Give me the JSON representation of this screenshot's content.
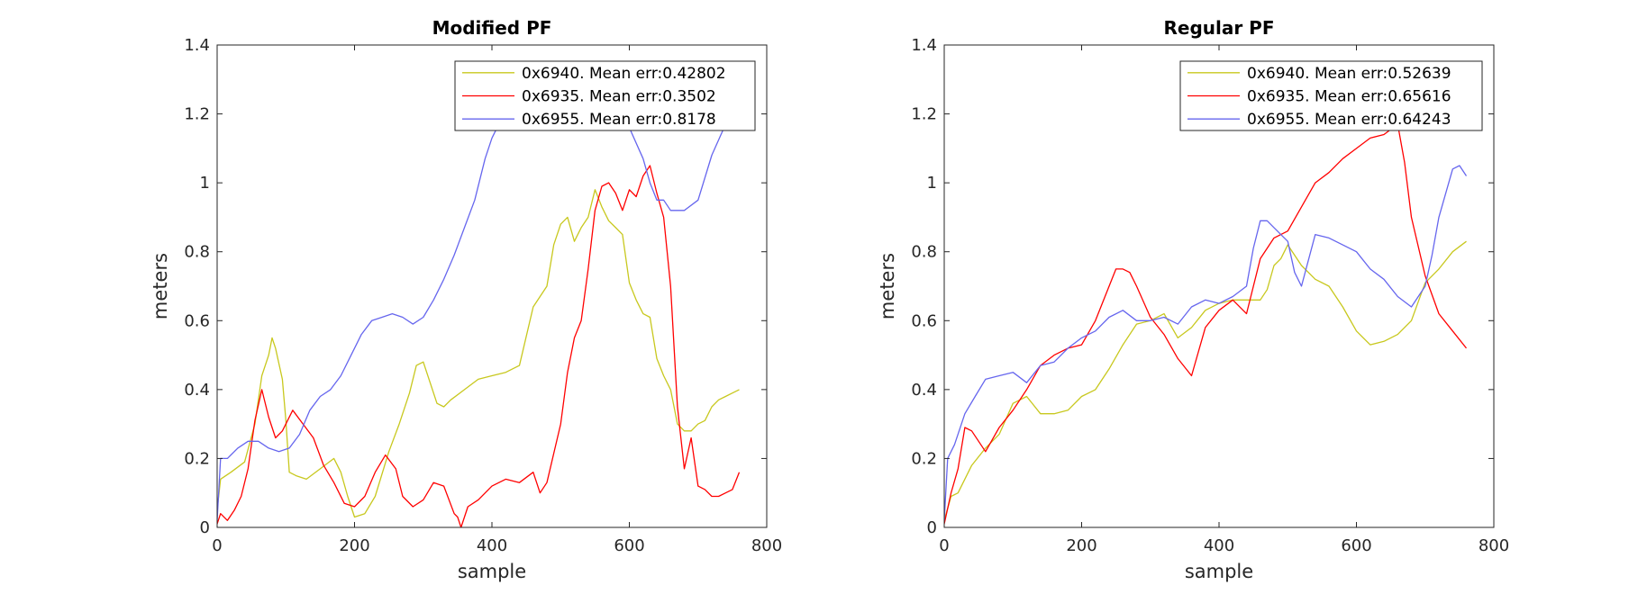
{
  "chart_data": [
    {
      "type": "line",
      "title": "Modified PF",
      "xlabel": "sample",
      "ylabel": "meters",
      "xlim": [
        0,
        800
      ],
      "ylim": [
        0,
        1.4
      ],
      "xticks": [
        0,
        200,
        400,
        600,
        800
      ],
      "yticks": [
        0,
        0.2,
        0.4,
        0.6,
        0.8,
        1,
        1.2,
        1.4
      ],
      "xtick_labels": [
        "0",
        "200",
        "400",
        "600",
        "800"
      ],
      "ytick_labels": [
        "0",
        "0.2",
        "0.4",
        "0.6",
        "0.8",
        "1",
        "1.2",
        "1.4"
      ],
      "grid": false,
      "legend_position": "top-right",
      "series": [
        {
          "name": "0x6940. Mean err:0.42802",
          "color": "#c8c81e",
          "x": [
            0,
            5,
            20,
            40,
            55,
            65,
            75,
            80,
            85,
            95,
            100,
            105,
            115,
            130,
            150,
            170,
            180,
            190,
            200,
            215,
            230,
            250,
            265,
            280,
            290,
            300,
            310,
            320,
            330,
            340,
            360,
            380,
            400,
            420,
            440,
            460,
            480,
            490,
            500,
            510,
            520,
            530,
            540,
            550,
            560,
            570,
            580,
            590,
            600,
            610,
            620,
            630,
            640,
            650,
            660,
            670,
            680,
            690,
            700,
            710,
            720,
            730,
            740,
            750,
            760
          ],
          "y": [
            0.05,
            0.14,
            0.16,
            0.19,
            0.3,
            0.44,
            0.5,
            0.55,
            0.52,
            0.43,
            0.31,
            0.16,
            0.15,
            0.14,
            0.17,
            0.2,
            0.16,
            0.09,
            0.03,
            0.04,
            0.09,
            0.22,
            0.3,
            0.39,
            0.47,
            0.48,
            0.42,
            0.36,
            0.35,
            0.37,
            0.4,
            0.43,
            0.44,
            0.45,
            0.47,
            0.64,
            0.7,
            0.82,
            0.88,
            0.9,
            0.83,
            0.87,
            0.9,
            0.98,
            0.93,
            0.89,
            0.87,
            0.85,
            0.71,
            0.66,
            0.62,
            0.61,
            0.49,
            0.44,
            0.4,
            0.3,
            0.28,
            0.28,
            0.3,
            0.31,
            0.35,
            0.37,
            0.38,
            0.39,
            0.4
          ]
        },
        {
          "name": "0x6935. Mean err:0.3502",
          "color": "#ff0000",
          "x": [
            0,
            5,
            15,
            25,
            35,
            45,
            55,
            65,
            75,
            85,
            95,
            110,
            125,
            140,
            155,
            170,
            185,
            200,
            215,
            230,
            245,
            260,
            270,
            285,
            300,
            315,
            330,
            345,
            350,
            355,
            365,
            380,
            400,
            420,
            440,
            460,
            470,
            480,
            500,
            510,
            515,
            520,
            530,
            540,
            550,
            560,
            570,
            580,
            590,
            600,
            610,
            620,
            630,
            640,
            650,
            660,
            670,
            680,
            690,
            700,
            710,
            720,
            730,
            740,
            750,
            760
          ],
          "y": [
            0.01,
            0.04,
            0.02,
            0.05,
            0.09,
            0.17,
            0.31,
            0.4,
            0.32,
            0.26,
            0.28,
            0.34,
            0.3,
            0.26,
            0.18,
            0.13,
            0.07,
            0.06,
            0.09,
            0.16,
            0.21,
            0.17,
            0.09,
            0.06,
            0.08,
            0.13,
            0.12,
            0.04,
            0.03,
            0.0,
            0.06,
            0.08,
            0.12,
            0.14,
            0.13,
            0.16,
            0.1,
            0.13,
            0.3,
            0.45,
            0.5,
            0.55,
            0.6,
            0.75,
            0.92,
            0.99,
            1.0,
            0.97,
            0.92,
            0.98,
            0.96,
            1.02,
            1.05,
            0.97,
            0.9,
            0.7,
            0.35,
            0.17,
            0.26,
            0.12,
            0.11,
            0.09,
            0.09,
            0.1,
            0.11,
            0.16
          ]
        },
        {
          "name": "0x6955. Mean err:0.8178",
          "color": "#6666ee",
          "x": [
            0,
            5,
            15,
            30,
            45,
            60,
            75,
            90,
            105,
            120,
            135,
            150,
            165,
            180,
            195,
            210,
            225,
            240,
            255,
            270,
            285,
            300,
            315,
            330,
            345,
            360,
            375,
            390,
            400,
            410,
            420,
            430,
            440,
            450,
            460,
            470,
            480,
            490,
            500,
            520,
            540,
            560,
            580,
            600,
            620,
            630,
            640,
            650,
            660,
            680,
            700,
            720,
            740
          ],
          "y": [
            0.02,
            0.2,
            0.2,
            0.23,
            0.25,
            0.25,
            0.23,
            0.22,
            0.23,
            0.27,
            0.34,
            0.38,
            0.4,
            0.44,
            0.5,
            0.56,
            0.6,
            0.61,
            0.62,
            0.61,
            0.59,
            0.61,
            0.66,
            0.72,
            0.79,
            0.87,
            0.95,
            1.07,
            1.13,
            1.17,
            1.17,
            1.16,
            1.16,
            1.16,
            1.16,
            1.16,
            1.16,
            1.16,
            1.16,
            1.16,
            1.16,
            1.16,
            1.16,
            1.16,
            1.07,
            1.0,
            0.95,
            0.95,
            0.92,
            0.92,
            0.95,
            1.08,
            1.17
          ]
        }
      ]
    },
    {
      "type": "line",
      "title": "Regular PF",
      "xlabel": "sample",
      "ylabel": "meters",
      "xlim": [
        0,
        800
      ],
      "ylim": [
        0,
        1.4
      ],
      "xticks": [
        0,
        200,
        400,
        600,
        800
      ],
      "yticks": [
        0,
        0.2,
        0.4,
        0.6,
        0.8,
        1,
        1.2,
        1.4
      ],
      "xtick_labels": [
        "0",
        "200",
        "400",
        "600",
        "800"
      ],
      "ytick_labels": [
        "0",
        "0.2",
        "0.4",
        "0.6",
        "0.8",
        "1",
        "1.2",
        "1.4"
      ],
      "grid": false,
      "legend_position": "top-right",
      "series": [
        {
          "name": "0x6940. Mean err:0.52639",
          "color": "#c8c81e",
          "x": [
            0,
            10,
            20,
            40,
            60,
            80,
            100,
            120,
            140,
            160,
            180,
            200,
            220,
            240,
            260,
            280,
            300,
            320,
            340,
            360,
            380,
            400,
            420,
            440,
            460,
            470,
            480,
            490,
            500,
            520,
            540,
            560,
            580,
            600,
            620,
            640,
            660,
            680,
            700,
            720,
            740,
            760
          ],
          "y": [
            0.02,
            0.09,
            0.1,
            0.18,
            0.23,
            0.27,
            0.36,
            0.38,
            0.33,
            0.33,
            0.34,
            0.38,
            0.4,
            0.46,
            0.53,
            0.59,
            0.6,
            0.62,
            0.55,
            0.58,
            0.63,
            0.65,
            0.66,
            0.66,
            0.66,
            0.69,
            0.76,
            0.78,
            0.82,
            0.76,
            0.72,
            0.7,
            0.64,
            0.57,
            0.53,
            0.54,
            0.56,
            0.6,
            0.71,
            0.75,
            0.8,
            0.83
          ]
        },
        {
          "name": "0x6935. Mean err:0.65616",
          "color": "#ff0000",
          "x": [
            0,
            10,
            20,
            30,
            40,
            60,
            80,
            100,
            120,
            140,
            160,
            180,
            200,
            220,
            240,
            250,
            260,
            270,
            280,
            300,
            320,
            340,
            360,
            380,
            400,
            420,
            440,
            460,
            480,
            500,
            520,
            540,
            560,
            580,
            600,
            620,
            640,
            660,
            670,
            680,
            700,
            720,
            740,
            760
          ],
          "y": [
            0.01,
            0.1,
            0.17,
            0.29,
            0.28,
            0.22,
            0.29,
            0.34,
            0.4,
            0.47,
            0.5,
            0.52,
            0.53,
            0.6,
            0.7,
            0.75,
            0.75,
            0.74,
            0.7,
            0.61,
            0.56,
            0.49,
            0.44,
            0.58,
            0.63,
            0.66,
            0.62,
            0.78,
            0.84,
            0.86,
            0.93,
            1.0,
            1.03,
            1.07,
            1.1,
            1.13,
            1.14,
            1.17,
            1.06,
            0.9,
            0.73,
            0.62,
            0.57,
            0.52
          ]
        },
        {
          "name": "0x6955. Mean err:0.64243",
          "color": "#6666ee",
          "x": [
            0,
            5,
            15,
            30,
            45,
            60,
            80,
            100,
            120,
            140,
            160,
            180,
            200,
            220,
            240,
            260,
            280,
            300,
            320,
            340,
            360,
            380,
            400,
            420,
            440,
            450,
            460,
            470,
            480,
            490,
            500,
            510,
            520,
            540,
            560,
            580,
            600,
            620,
            640,
            660,
            680,
            700,
            710,
            720,
            740,
            750,
            760
          ],
          "y": [
            0.02,
            0.2,
            0.24,
            0.33,
            0.38,
            0.43,
            0.44,
            0.45,
            0.42,
            0.47,
            0.48,
            0.52,
            0.55,
            0.57,
            0.61,
            0.63,
            0.6,
            0.6,
            0.61,
            0.59,
            0.64,
            0.66,
            0.65,
            0.67,
            0.7,
            0.81,
            0.89,
            0.89,
            0.87,
            0.85,
            0.83,
            0.74,
            0.7,
            0.85,
            0.84,
            0.82,
            0.8,
            0.75,
            0.72,
            0.67,
            0.64,
            0.7,
            0.79,
            0.9,
            1.04,
            1.05,
            1.02
          ]
        }
      ]
    }
  ]
}
